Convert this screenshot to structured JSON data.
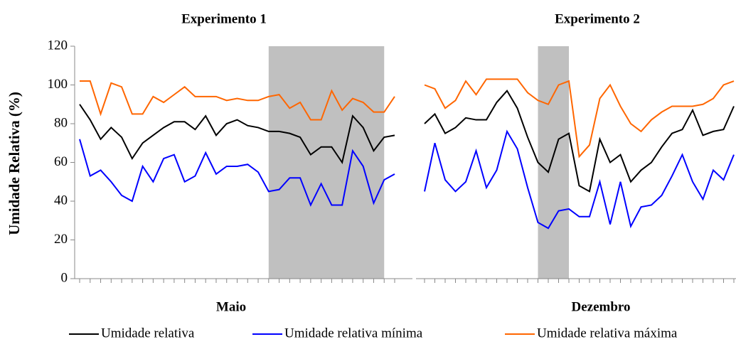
{
  "chart_data": [
    {
      "type": "line",
      "title": "Experimento 1",
      "x_label": "Maio",
      "y_label": "Umidade Relativa (%)",
      "categories": [
        null,
        null,
        null,
        null,
        null,
        null,
        null,
        null,
        null,
        null,
        null,
        null,
        null,
        null,
        null,
        null,
        null,
        null,
        null,
        null,
        null,
        null,
        null,
        null,
        null,
        null,
        null,
        null,
        null,
        null,
        null
      ],
      "ylim": [
        0,
        120
      ],
      "yticks": [
        0,
        20,
        40,
        60,
        80,
        100,
        120
      ],
      "shaded": [
        [
          18,
          29
        ]
      ],
      "shade_color": "#c0c0c0",
      "series": [
        {
          "name": "Umidade relativa",
          "color": "#000000",
          "values": [
            90,
            82,
            72,
            78,
            73,
            62,
            70,
            74,
            78,
            81,
            81,
            77,
            84,
            74,
            80,
            82,
            79,
            78,
            76,
            76,
            75,
            73,
            64,
            68,
            68,
            60,
            84,
            78,
            66,
            73,
            74
          ]
        },
        {
          "name": "Umidade relativa mínima",
          "color": "#0000ff",
          "values": [
            72,
            53,
            56,
            50,
            43,
            40,
            58,
            50,
            62,
            64,
            50,
            53,
            65,
            54,
            58,
            58,
            59,
            55,
            45,
            46,
            52,
            52,
            38,
            49,
            38,
            38,
            66,
            58,
            39,
            51,
            54
          ]
        },
        {
          "name": "Umidade relativa máxima",
          "color": "#ff6600",
          "values": [
            102,
            102,
            85,
            101,
            99,
            85,
            85,
            94,
            91,
            95,
            99,
            94,
            94,
            94,
            92,
            93,
            92,
            92,
            94,
            95,
            88,
            91,
            82,
            82,
            97,
            87,
            93,
            91,
            86,
            86,
            94
          ]
        }
      ]
    },
    {
      "type": "line",
      "title": "Experimento 2",
      "x_label": "Dezembro",
      "categories": [
        null,
        null,
        null,
        null,
        null,
        null,
        null,
        null,
        null,
        null,
        null,
        null,
        null,
        null,
        null,
        null,
        null,
        null,
        null,
        null,
        null,
        null,
        null,
        null,
        null,
        null,
        null,
        null,
        null,
        null,
        null
      ],
      "ylim": [
        0,
        120
      ],
      "shaded": [
        [
          11,
          14
        ]
      ],
      "shade_color": "#c0c0c0",
      "series": [
        {
          "color": "#000000",
          "values": [
            80,
            85,
            75,
            78,
            83,
            82,
            82,
            91,
            97,
            88,
            73,
            60,
            55,
            72,
            75,
            48,
            45,
            72,
            60,
            64,
            50,
            56,
            60,
            68,
            75,
            77,
            87,
            74,
            76,
            77,
            89
          ]
        },
        {
          "color": "#0000ff",
          "values": [
            45,
            70,
            51,
            45,
            50,
            66,
            47,
            56,
            76,
            67,
            47,
            29,
            26,
            35,
            36,
            32,
            32,
            50,
            28,
            50,
            27,
            37,
            38,
            43,
            53,
            64,
            50,
            41,
            56,
            51,
            64
          ]
        },
        {
          "color": "#ff6600",
          "values": [
            100,
            98,
            88,
            92,
            102,
            95,
            103,
            103,
            103,
            103,
            96,
            92,
            90,
            100,
            102,
            63,
            69,
            93,
            100,
            89,
            80,
            76,
            82,
            86,
            89,
            89,
            89,
            90,
            93,
            100,
            102
          ]
        }
      ]
    }
  ]
}
